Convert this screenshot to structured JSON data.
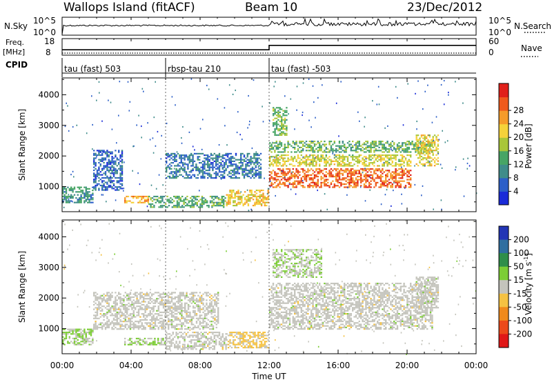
{
  "header": {
    "title": "Wallops Island (fitACF)",
    "beam": "Beam 10",
    "date": "23/Dec/2012"
  },
  "strip_labels": {
    "nsky": "N.Sky",
    "nsky_top": "10^5",
    "nsky_bottom": "10^0",
    "nsearch": "N.Search",
    "nsearch_top": "10^5",
    "nsearch_bottom": "10^0",
    "freq_top_line": "Freq.",
    "freq_unit": "[MHz]",
    "freq_ticks": [
      "18",
      "8"
    ],
    "nave": "Nave",
    "nave_ticks": [
      "60",
      "0"
    ],
    "cpid": "CPID"
  },
  "cpid_segments": [
    {
      "label": "tau (fast) 503",
      "start_hour": 0
    },
    {
      "label": "rbsp-tau 210",
      "start_hour": 6
    },
    {
      "label": "tau (fast) -503",
      "start_hour": 12
    }
  ],
  "axes": {
    "xlabel": "Time UT",
    "x_ticks": [
      "00:00",
      "04:00",
      "08:00",
      "12:00",
      "16:00",
      "20:00",
      "00:00"
    ],
    "ylabel": "Slant Range [km]",
    "y_ticks": [
      "1000",
      "2000",
      "3000",
      "4000"
    ]
  },
  "colorbars": {
    "power": {
      "label": "Power [dB]",
      "ticks": [
        "4",
        "8",
        "12",
        "16",
        "20",
        "24",
        "28"
      ],
      "colors": [
        "#1a2bd8",
        "#2c5fc8",
        "#3f8c8a",
        "#47a565",
        "#a9c639",
        "#f5d23a",
        "#f59b2a",
        "#ef5a1c",
        "#e0201a"
      ]
    },
    "velocity": {
      "label": "Velocity [m s",
      "label_sup": "-1",
      "label_end": "]",
      "ticks": [
        "200",
        "100",
        "50",
        "15",
        "-15",
        "-50",
        "-100",
        "-200"
      ],
      "colors": [
        "#2235b5",
        "#2f6ea0",
        "#2f8e4a",
        "#7ccd35",
        "#c4c4bc",
        "#f5c242",
        "#f08a1c",
        "#ec4a1a",
        "#e01818"
      ]
    }
  },
  "chart_data": {
    "type": "heatmap",
    "title": "Wallops Island (fitACF)",
    "xlabel": "Time UT",
    "ylabel": "Slant Range [km]",
    "xlim_hours": [
      0,
      24
    ],
    "ylim_km": [
      180,
      4550
    ],
    "panels": [
      {
        "name": "Power",
        "unit": "dB",
        "colorbar_range": [
          0,
          32
        ],
        "echo_regions": [
          {
            "t": [
              0.0,
              1.8
            ],
            "range_km": [
              480,
              1000
            ],
            "value": 10
          },
          {
            "t": [
              1.8,
              3.5
            ],
            "range_km": [
              900,
              2200
            ],
            "value": 6
          },
          {
            "t": [
              3.6,
              5.0
            ],
            "range_km": [
              480,
              700
            ],
            "value": 22
          },
          {
            "t": [
              5.0,
              9.5
            ],
            "range_km": [
              330,
              700
            ],
            "value": 12
          },
          {
            "t": [
              6.0,
              11.5
            ],
            "range_km": [
              1300,
              2100
            ],
            "value": 7
          },
          {
            "t": [
              9.5,
              11.9
            ],
            "range_km": [
              380,
              900
            ],
            "value": 20
          },
          {
            "t": [
              12.2,
              13.0
            ],
            "range_km": [
              2700,
              3600
            ],
            "value": 14
          },
          {
            "t": [
              12.0,
              20.2
            ],
            "range_km": [
              1000,
              1600
            ],
            "value": 26
          },
          {
            "t": [
              12.0,
              20.2
            ],
            "range_km": [
              1700,
              2050
            ],
            "value": 18
          },
          {
            "t": [
              12.0,
              21.5
            ],
            "range_km": [
              2150,
              2500
            ],
            "value": 13
          },
          {
            "t": [
              20.5,
              21.8
            ],
            "range_km": [
              1700,
              2700
            ],
            "value": 19
          }
        ]
      },
      {
        "name": "Velocity",
        "unit": "m s-1",
        "colorbar_range": [
          -250,
          250
        ],
        "echo_regions": [
          {
            "t": [
              0.0,
              1.8
            ],
            "range_km": [
              480,
              1000
            ],
            "value": 30
          },
          {
            "t": [
              1.8,
              9.0
            ],
            "range_km": [
              1000,
              2200
            ],
            "value": 0
          },
          {
            "t": [
              3.6,
              6.0
            ],
            "range_km": [
              480,
              700
            ],
            "value": 30
          },
          {
            "t": [
              6.0,
              9.5
            ],
            "range_km": [
              330,
              900
            ],
            "value": 0
          },
          {
            "t": [
              9.5,
              11.9
            ],
            "range_km": [
              380,
              900
            ],
            "value": -40
          },
          {
            "t": [
              12.0,
              21.5
            ],
            "range_km": [
              1000,
              2500
            ],
            "value": 0
          },
          {
            "t": [
              12.2,
              15.0
            ],
            "range_km": [
              2700,
              3600
            ],
            "value": 20
          },
          {
            "t": [
              20.5,
              21.8
            ],
            "range_km": [
              1700,
              2700
            ],
            "value": 0
          }
        ]
      }
    ],
    "frequency_mhz": [
      {
        "t": [
          0,
          12
        ],
        "value": 11
      },
      {
        "t": [
          12,
          24
        ],
        "value": 15
      }
    ],
    "nave": [
      {
        "t": [
          0,
          24
        ],
        "value": 6
      }
    ]
  }
}
